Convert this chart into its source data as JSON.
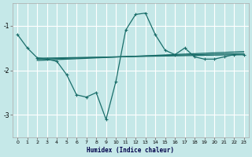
{
  "xlabel": "Humidex (Indice chaleur)",
  "background_color": "#c5e8e8",
  "grid_color": "#ffffff",
  "line_color": "#1a6e6a",
  "xlim": [
    -0.5,
    23.5
  ],
  "ylim": [
    -3.5,
    -0.5
  ],
  "yticks": [
    -3,
    -2,
    -1
  ],
  "xticks": [
    0,
    1,
    2,
    3,
    4,
    5,
    6,
    7,
    8,
    9,
    10,
    11,
    12,
    13,
    14,
    15,
    16,
    17,
    18,
    19,
    20,
    21,
    22,
    23
  ],
  "curve1_x": [
    0,
    1,
    2,
    3,
    4,
    5,
    6,
    7,
    8,
    9,
    10,
    11,
    12,
    13,
    14,
    15,
    16,
    17,
    18,
    19,
    20,
    21,
    22,
    23
  ],
  "curve1_y": [
    -1.2,
    -1.5,
    -1.72,
    -1.75,
    -1.8,
    -2.1,
    -2.55,
    -2.6,
    -2.5,
    -3.1,
    -2.25,
    -1.1,
    -0.75,
    -0.72,
    -1.2,
    -1.55,
    -1.65,
    -1.5,
    -1.7,
    -1.75,
    -1.75,
    -1.7,
    -1.65,
    -1.65
  ],
  "line1_x": [
    2,
    23
  ],
  "line1_y": [
    -1.78,
    -1.58
  ],
  "line2_x": [
    2,
    23
  ],
  "line2_y": [
    -1.75,
    -1.62
  ],
  "line3_x": [
    2,
    23
  ],
  "line3_y": [
    -1.73,
    -1.65
  ]
}
